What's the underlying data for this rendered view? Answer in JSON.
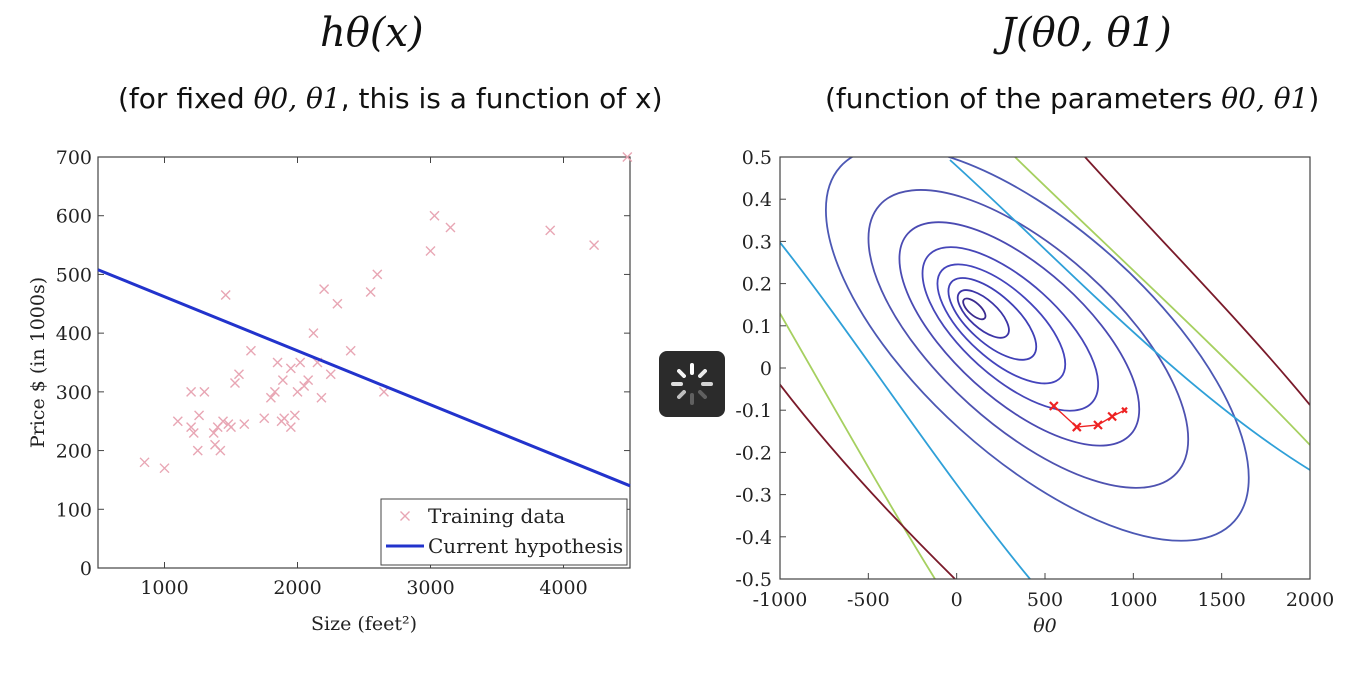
{
  "left_panel": {
    "title": "hθ(x)",
    "subtitle_prefix": "(for fixed ",
    "subtitle_math": "θ0, θ1",
    "subtitle_suffix": ", this is a function of x)"
  },
  "right_panel": {
    "title": "J(θ0, θ1)",
    "subtitle_prefix": "(function of the parameters ",
    "subtitle_math": "θ0, θ1"
  },
  "colors": {
    "training": "#e8a6b4",
    "hypothesis": "#2233cc",
    "path": "#ee2222",
    "contours": [
      "#3b2b8f",
      "#3c34a6",
      "#3f3fb6",
      "#4444bc",
      "#4646b8",
      "#4a4ab2",
      "#4e52b0",
      "#4c58b4",
      "#2fa0d8",
      "#a6d060",
      "#7a1a2a"
    ]
  },
  "chart_data": [
    {
      "type": "scatter",
      "xlabel": "Size (feet²)",
      "ylabel": "Price $ (in 1000s)",
      "xlim": [
        500,
        4500
      ],
      "ylim": [
        0,
        700
      ],
      "xticks": [
        "1000",
        "2000",
        "3000",
        "4000"
      ],
      "yticks": [
        "0",
        "100",
        "200",
        "300",
        "400",
        "500",
        "600",
        "700"
      ],
      "grid": false,
      "legend_position": "bottom-right",
      "legend": [
        "Training data",
        "Current hypothesis"
      ],
      "series": [
        {
          "name": "Training data",
          "marker": "x",
          "points": [
            [
              850,
              180
            ],
            [
              1000,
              170
            ],
            [
              1100,
              250
            ],
            [
              1200,
              300
            ],
            [
              1200,
              240
            ],
            [
              1220,
              230
            ],
            [
              1250,
              200
            ],
            [
              1260,
              260
            ],
            [
              1300,
              300
            ],
            [
              1370,
              230
            ],
            [
              1380,
              210
            ],
            [
              1400,
              240
            ],
            [
              1420,
              200
            ],
            [
              1440,
              250
            ],
            [
              1460,
              465
            ],
            [
              1480,
              245
            ],
            [
              1500,
              240
            ],
            [
              1530,
              315
            ],
            [
              1560,
              330
            ],
            [
              1600,
              245
            ],
            [
              1650,
              370
            ],
            [
              1750,
              255
            ],
            [
              1800,
              290
            ],
            [
              1830,
              300
            ],
            [
              1850,
              350
            ],
            [
              1880,
              250
            ],
            [
              1890,
              320
            ],
            [
              1900,
              255
            ],
            [
              1950,
              340
            ],
            [
              1950,
              240
            ],
            [
              1980,
              260
            ],
            [
              2000,
              300
            ],
            [
              2020,
              350
            ],
            [
              2050,
              310
            ],
            [
              2080,
              320
            ],
            [
              2120,
              400
            ],
            [
              2150,
              350
            ],
            [
              2180,
              290
            ],
            [
              2200,
              475
            ],
            [
              2250,
              330
            ],
            [
              2300,
              450
            ],
            [
              2400,
              370
            ],
            [
              2550,
              470
            ],
            [
              2600,
              500
            ],
            [
              2650,
              300
            ],
            [
              3000,
              540
            ],
            [
              3030,
              600
            ],
            [
              3150,
              580
            ],
            [
              3900,
              575
            ],
            [
              4230,
              550
            ],
            [
              4480,
              700
            ]
          ]
        },
        {
          "name": "Current hypothesis",
          "type": "line",
          "x": [
            500,
            4500
          ],
          "y": [
            508,
            140
          ]
        }
      ]
    },
    {
      "type": "contour",
      "xlabel": "θ0",
      "ylabel": "",
      "xlim": [
        -1000,
        2000
      ],
      "ylim": [
        -0.5,
        0.5
      ],
      "xticks": [
        "-1000",
        "-500",
        "0",
        "500",
        "1000",
        "1500",
        "2000"
      ],
      "yticks": [
        "0.5",
        "0.4",
        "0.3",
        "0.2",
        "0.1",
        "0",
        "-0.1",
        "-0.2",
        "-0.3",
        "-0.4",
        "-0.5"
      ],
      "grid": false,
      "center": [
        100,
        0.14
      ],
      "path": [
        [
          550,
          -0.09
        ],
        [
          680,
          -0.14
        ],
        [
          800,
          -0.135
        ],
        [
          880,
          -0.115
        ],
        [
          950,
          -0.1
        ]
      ]
    }
  ]
}
